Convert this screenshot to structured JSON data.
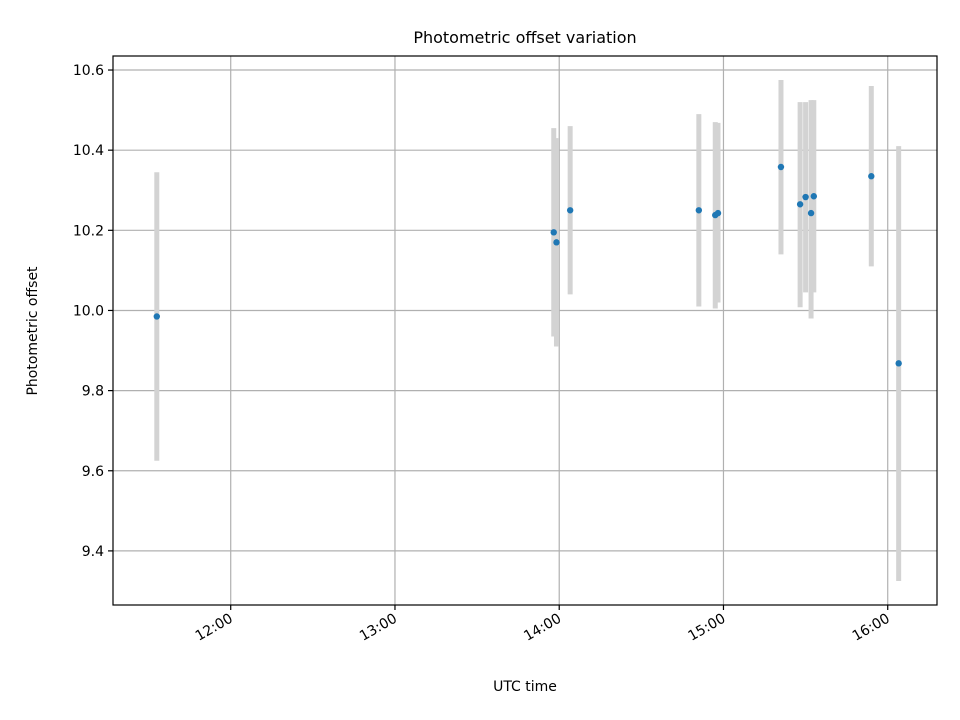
{
  "chart_data": {
    "type": "scatter",
    "title": "Photometric offset variation",
    "xlabel": "UTC time",
    "ylabel": "Photometric offset",
    "grid": true,
    "xlim": [
      "11:17",
      "16:18"
    ],
    "ylim": [
      9.265,
      10.635
    ],
    "x_ticks": [
      "12:00",
      "13:00",
      "14:00",
      "15:00",
      "16:00"
    ],
    "y_ticks": [
      9.4,
      9.6,
      9.8,
      10.0,
      10.2,
      10.4,
      10.6
    ],
    "y_tick_labels": [
      "9.4",
      "9.6",
      "9.8",
      "10.0",
      "10.2",
      "10.4",
      "10.6"
    ],
    "marker_color": "#1f77b4",
    "errorbar_color": "#d3d3d3",
    "points": [
      {
        "x": "11:33",
        "y": 9.985,
        "y_low": 9.625,
        "y_high": 10.345
      },
      {
        "x": "13:58",
        "y": 10.195,
        "y_low": 9.935,
        "y_high": 10.455
      },
      {
        "x": "13:59",
        "y": 10.17,
        "y_low": 9.91,
        "y_high": 10.43
      },
      {
        "x": "14:04",
        "y": 10.25,
        "y_low": 10.04,
        "y_high": 10.46
      },
      {
        "x": "14:51",
        "y": 10.25,
        "y_low": 10.01,
        "y_high": 10.49
      },
      {
        "x": "14:57",
        "y": 10.238,
        "y_low": 10.005,
        "y_high": 10.47
      },
      {
        "x": "14:58",
        "y": 10.243,
        "y_low": 10.02,
        "y_high": 10.468
      },
      {
        "x": "15:21",
        "y": 10.358,
        "y_low": 10.14,
        "y_high": 10.575
      },
      {
        "x": "15:28",
        "y": 10.265,
        "y_low": 10.008,
        "y_high": 10.52
      },
      {
        "x": "15:30",
        "y": 10.283,
        "y_low": 10.045,
        "y_high": 10.52
      },
      {
        "x": "15:32",
        "y": 10.243,
        "y_low": 9.98,
        "y_high": 10.525
      },
      {
        "x": "15:33",
        "y": 10.285,
        "y_low": 10.045,
        "y_high": 10.525
      },
      {
        "x": "15:54",
        "y": 10.335,
        "y_low": 10.11,
        "y_high": 10.56
      },
      {
        "x": "16:04",
        "y": 9.868,
        "y_low": 9.325,
        "y_high": 10.41
      }
    ]
  }
}
